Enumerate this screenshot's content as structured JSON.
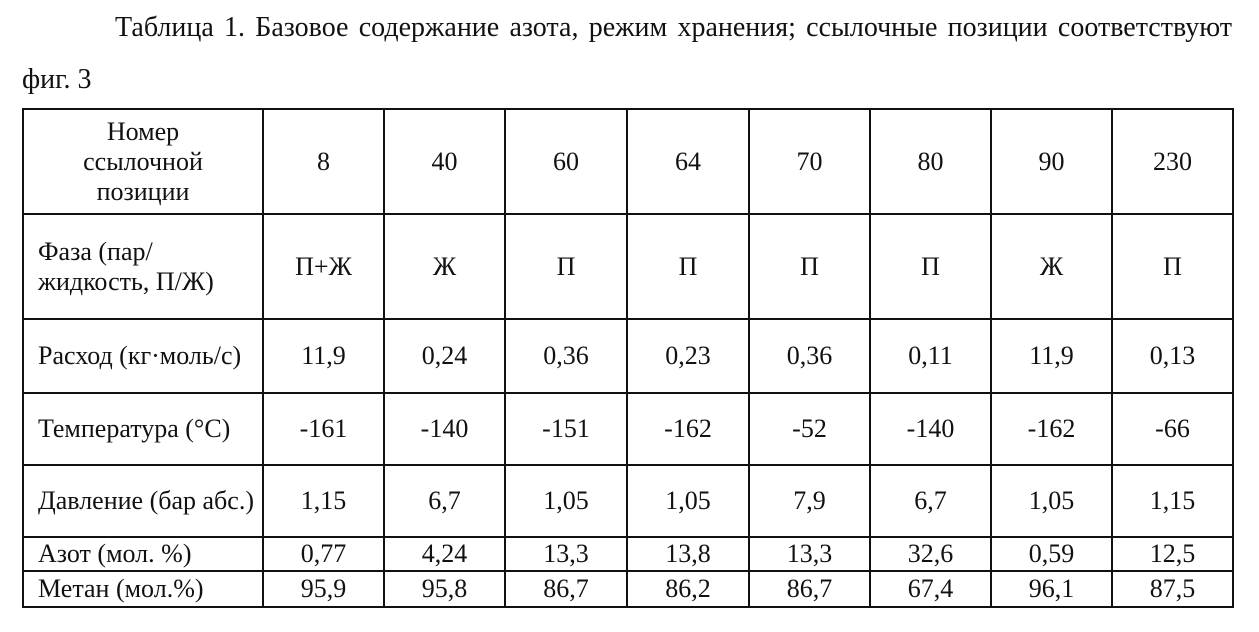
{
  "caption": "Таблица 1. Базовое содержание азота, режим хранения; ссылочные позиции соответствуют фиг. 3",
  "table": {
    "header": [
      "Номер ссылочной позиции",
      "8",
      "40",
      "60",
      "64",
      "70",
      "80",
      "90",
      "230"
    ],
    "rows": [
      [
        "Фаза (пар/жидкость, П/Ж)",
        "П+Ж",
        "Ж",
        "П",
        "П",
        "П",
        "П",
        "Ж",
        "П"
      ],
      [
        "Расход (кг·моль/с)",
        "11,9",
        "0,24",
        "0,36",
        "0,23",
        "0,36",
        "0,11",
        "11,9",
        "0,13"
      ],
      [
        "Температура (°С)",
        "-161",
        "-140",
        "-151",
        "-162",
        "-52",
        "-140",
        "-162",
        "-66"
      ],
      [
        "Давление (бар абс.)",
        "1,15",
        "6,7",
        "1,05",
        "1,05",
        "7,9",
        "6,7",
        "1,05",
        "1,15"
      ],
      [
        "Азот (мол. %)",
        "0,77",
        "4,24",
        "13,3",
        "13,8",
        "13,3",
        "32,6",
        "0,59",
        "12,5"
      ],
      [
        "Метан (мол.%)",
        "95,9",
        "95,8",
        "86,7",
        "86,2",
        "86,7",
        "67,4",
        "96,1",
        "87,5"
      ]
    ]
  }
}
